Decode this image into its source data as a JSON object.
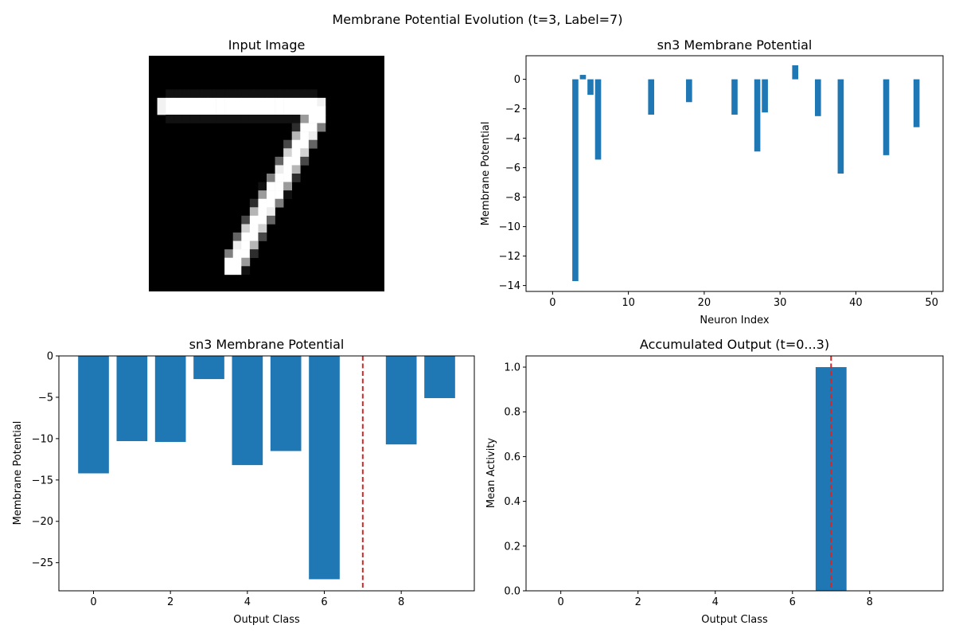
{
  "suptitle": "Membrane Potential Evolution (t=3, Label=7)",
  "colors": {
    "bar": "#1f77b4",
    "reference_line": "#d62728",
    "image_background": "#000000"
  },
  "chart_data": [
    {
      "type": "image",
      "title": "Input Image",
      "description_size": "28x28 grayscale digit",
      "strokes": [
        {
          "from": [
            2,
            6
          ],
          "to": [
            20,
            6
          ],
          "width": 1.2
        },
        {
          "from": [
            20,
            7
          ],
          "to": [
            10,
            25
          ],
          "width": 1.3
        }
      ]
    },
    {
      "type": "bar",
      "title": "sn3 Membrane Potential",
      "xlabel": "Neuron Index",
      "ylabel": "Membrane Potential",
      "xlim": [
        -3.5,
        51.5
      ],
      "ylim": [
        -14.4,
        1.6
      ],
      "xticks": [
        0,
        10,
        20,
        30,
        40,
        50
      ],
      "yticks": [
        0,
        -2,
        -4,
        -6,
        -8,
        -10,
        -12,
        -14
      ],
      "bar_width": 0.8,
      "x": [
        3,
        4,
        5,
        6,
        13,
        18,
        24,
        27,
        28,
        32,
        35,
        38,
        44,
        48
      ],
      "values": [
        -13.7,
        0.3,
        -1.05,
        -5.45,
        -2.4,
        -1.55,
        -2.4,
        -4.9,
        -2.25,
        0.95,
        -2.5,
        -6.4,
        -5.15,
        -3.25
      ]
    },
    {
      "type": "bar",
      "title": "sn3 Membrane Potential",
      "xlabel": "Output Class",
      "ylabel": "Membrane Potential",
      "xlim": [
        -0.9,
        9.9
      ],
      "ylim": [
        -28.4,
        0
      ],
      "xticks": [
        0,
        2,
        4,
        6,
        8
      ],
      "yticks": [
        0,
        -5,
        -10,
        -15,
        -20,
        -25
      ],
      "bar_width": 0.8,
      "x": [
        0,
        1,
        2,
        3,
        4,
        5,
        6,
        7,
        8,
        9
      ],
      "values": [
        -14.2,
        -10.3,
        -10.4,
        -2.8,
        -13.2,
        -11.5,
        -27.0,
        0,
        -10.7,
        -5.1
      ],
      "reference_line_x": 7
    },
    {
      "type": "bar",
      "title": "Accumulated Output (t=0...3)",
      "xlabel": "Output Class",
      "ylabel": "Mean Activity",
      "xlim": [
        -0.9,
        9.9
      ],
      "ylim": [
        0,
        1.05
      ],
      "xticks": [
        0,
        2,
        4,
        6,
        8
      ],
      "yticks": [
        0.0,
        0.2,
        0.4,
        0.6,
        0.8,
        1.0
      ],
      "bar_width": 0.8,
      "x": [
        0,
        1,
        2,
        3,
        4,
        5,
        6,
        7,
        8,
        9
      ],
      "values": [
        0,
        0,
        0,
        0,
        0,
        0,
        0,
        1.0,
        0,
        0
      ],
      "reference_line_x": 7
    }
  ]
}
